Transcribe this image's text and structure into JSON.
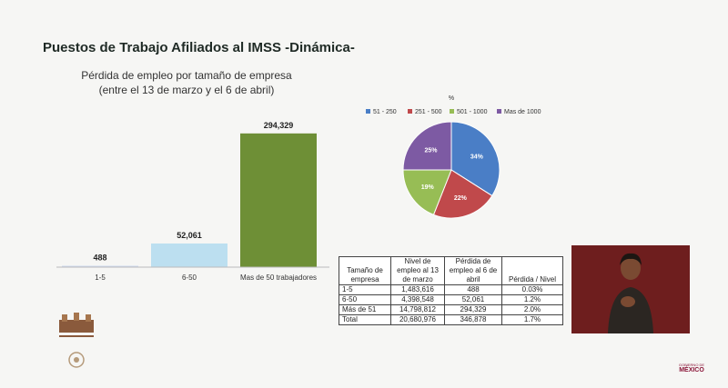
{
  "header": {
    "title": "Puestos de Trabajo Afiliados al IMSS -Dinámica-",
    "subtitle_line1": "Pérdida de empleo por tamaño de empresa",
    "subtitle_line2": "(entre el 13 de marzo y el 6 de abril)"
  },
  "chart_data": [
    {
      "type": "bar",
      "categories": [
        "1-5",
        "6-50",
        "Mas de 50 trabajadores"
      ],
      "values": [
        488,
        52061,
        294329
      ],
      "value_labels": [
        "488",
        "52,061",
        "294,329"
      ],
      "colors": [
        "#cfd9ee",
        "#bcdff0",
        "#6e8f36"
      ],
      "ylim": [
        0,
        300000
      ],
      "grid": false,
      "legend": "none"
    },
    {
      "type": "pie",
      "title": "%",
      "labels": [
        "51 - 250",
        "251 - 500",
        "501 - 1000",
        "Mas de 1000"
      ],
      "values": [
        34,
        22,
        19,
        25
      ],
      "value_labels": [
        "34%",
        "22%",
        "19%",
        "25%"
      ],
      "colors": [
        "#4a7ec6",
        "#c0494b",
        "#97bd55",
        "#7d5aa3"
      ],
      "legend": "top"
    }
  ],
  "table": {
    "headers": [
      "Tamaño de empresa",
      "Nivel de empleo al 13 de marzo",
      "Pérdida de empleo al 6 de abril",
      "Pérdida / Nivel"
    ],
    "rows": [
      [
        "1-5",
        "1,483,616",
        "488",
        "0.03%"
      ],
      [
        "6-50",
        "4,398,548",
        "52,061",
        "1.2%"
      ],
      [
        "Más de 51",
        "14,798,812",
        "294,329",
        "2.0%"
      ],
      [
        "Total",
        "20,680,976",
        "346,878",
        "1.7%"
      ]
    ]
  },
  "logos": {
    "right_small": "GOBIERNO DE",
    "right_big": "MÉXICO"
  }
}
